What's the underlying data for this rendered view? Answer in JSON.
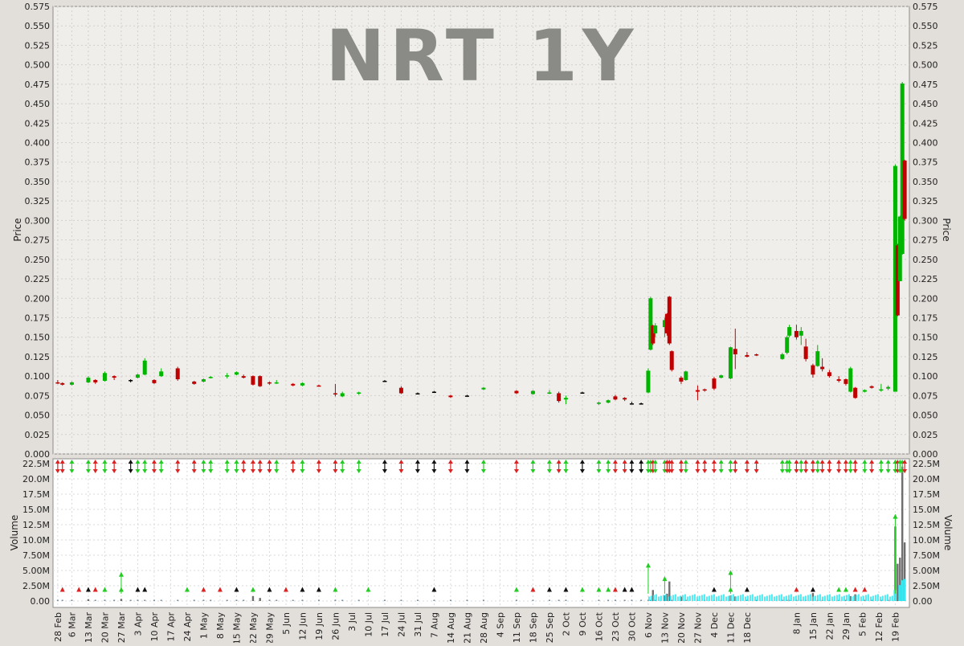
{
  "chart_data": [
    {
      "type": "candlestick",
      "title": "NRT 1Y",
      "ylabel": "Price",
      "ylim": [
        0,
        0.575
      ],
      "y_ticks": [
        "0.000",
        "0.025",
        "0.050",
        "0.075",
        "0.100",
        "0.125",
        "0.150",
        "0.175",
        "0.200",
        "0.225",
        "0.250",
        "0.275",
        "0.300",
        "0.325",
        "0.350",
        "0.375",
        "0.400",
        "0.425",
        "0.450",
        "0.475",
        "0.500",
        "0.525",
        "0.550",
        "0.575"
      ],
      "grid": true,
      "colors": {
        "up": "#00b400",
        "down": "#c00000",
        "flat": "#000000"
      },
      "x_tick_labels": [
        "28 Feb",
        "6 Mar",
        "13 Mar",
        "20 Mar",
        "27 Mar",
        "3 Apr",
        "10 Apr",
        "17 Apr",
        "24 Apr",
        "1 May",
        "8 May",
        "15 May",
        "22 May",
        "29 May",
        "5 Jun",
        "12 Jun",
        "19 Jun",
        "26 Jun",
        "3 Jul",
        "10 Jul",
        "17 Jul",
        "24 Jul",
        "31 Jul",
        "7 Aug",
        "14 Aug",
        "21 Aug",
        "28 Aug",
        "4 Sep",
        "11 Sep",
        "18 Sep",
        "25 Sep",
        "2 Oct",
        "9 Oct",
        "16 Oct",
        "23 Oct",
        "30 Oct",
        "6 Nov",
        "13 Nov",
        "20 Nov",
        "27 Nov",
        "4 Dec",
        "11 Dec",
        "18 Dec",
        "8 Jan",
        "15 Jan",
        "22 Jan",
        "29 Jan",
        "5 Feb",
        "12 Feb",
        "19 Feb"
      ],
      "candles": [
        {
          "date": "28 Feb",
          "open": 0.092,
          "high": 0.095,
          "low": 0.09,
          "close": 0.091
        },
        {
          "date": "2 Mar",
          "open": 0.091,
          "high": 0.092,
          "low": 0.088,
          "close": 0.089
        },
        {
          "date": "6 Mar",
          "open": 0.089,
          "high": 0.093,
          "low": 0.088,
          "close": 0.092
        },
        {
          "date": "13 Mar",
          "open": 0.092,
          "high": 0.1,
          "low": 0.091,
          "close": 0.098
        },
        {
          "date": "16 Mar",
          "open": 0.095,
          "high": 0.096,
          "low": 0.09,
          "close": 0.092
        },
        {
          "date": "20 Mar",
          "open": 0.094,
          "high": 0.106,
          "low": 0.093,
          "close": 0.104
        },
        {
          "date": "24 Mar",
          "open": 0.1,
          "high": 0.101,
          "low": 0.095,
          "close": 0.098
        },
        {
          "date": "31 Mar",
          "open": 0.095,
          "high": 0.096,
          "low": 0.092,
          "close": 0.095
        },
        {
          "date": "3 Apr",
          "open": 0.098,
          "high": 0.103,
          "low": 0.097,
          "close": 0.102
        },
        {
          "date": "6 Apr",
          "open": 0.102,
          "high": 0.123,
          "low": 0.101,
          "close": 0.12
        },
        {
          "date": "10 Apr",
          "open": 0.095,
          "high": 0.096,
          "low": 0.09,
          "close": 0.091
        },
        {
          "date": "13 Apr",
          "open": 0.1,
          "high": 0.11,
          "low": 0.099,
          "close": 0.106
        },
        {
          "date": "20 Apr",
          "open": 0.11,
          "high": 0.112,
          "low": 0.094,
          "close": 0.096
        },
        {
          "date": "27 Apr",
          "open": 0.093,
          "high": 0.094,
          "low": 0.089,
          "close": 0.09
        },
        {
          "date": "1 May",
          "open": 0.093,
          "high": 0.097,
          "low": 0.092,
          "close": 0.096
        },
        {
          "date": "4 May",
          "open": 0.098,
          "high": 0.1,
          "low": 0.097,
          "close": 0.099
        },
        {
          "date": "11 May",
          "open": 0.1,
          "high": 0.104,
          "low": 0.097,
          "close": 0.101
        },
        {
          "date": "15 May",
          "open": 0.102,
          "high": 0.106,
          "low": 0.101,
          "close": 0.105
        },
        {
          "date": "18 May",
          "open": 0.1,
          "high": 0.102,
          "low": 0.097,
          "close": 0.098
        },
        {
          "date": "22 May",
          "open": 0.1,
          "high": 0.101,
          "low": 0.088,
          "close": 0.089
        },
        {
          "date": "25 May",
          "open": 0.1,
          "high": 0.101,
          "low": 0.086,
          "close": 0.087
        },
        {
          "date": "29 May",
          "open": 0.092,
          "high": 0.093,
          "low": 0.089,
          "close": 0.091
        },
        {
          "date": "1 Jun",
          "open": 0.091,
          "high": 0.095,
          "low": 0.09,
          "close": 0.092
        },
        {
          "date": "8 Jun",
          "open": 0.09,
          "high": 0.091,
          "low": 0.087,
          "close": 0.088
        },
        {
          "date": "12 Jun",
          "open": 0.088,
          "high": 0.092,
          "low": 0.087,
          "close": 0.091
        },
        {
          "date": "19 Jun",
          "open": 0.088,
          "high": 0.089,
          "low": 0.087,
          "close": 0.087
        },
        {
          "date": "26 Jun",
          "open": 0.078,
          "high": 0.09,
          "low": 0.074,
          "close": 0.077
        },
        {
          "date": "29 Jun",
          "open": 0.074,
          "high": 0.08,
          "low": 0.073,
          "close": 0.078
        },
        {
          "date": "6 Jul",
          "open": 0.078,
          "high": 0.08,
          "low": 0.076,
          "close": 0.079
        },
        {
          "date": "17 Jul",
          "open": 0.094,
          "high": 0.095,
          "low": 0.093,
          "close": 0.094
        },
        {
          "date": "24 Jul",
          "open": 0.085,
          "high": 0.087,
          "low": 0.077,
          "close": 0.078
        },
        {
          "date": "31 Jul",
          "open": 0.078,
          "high": 0.079,
          "low": 0.077,
          "close": 0.078
        },
        {
          "date": "7 Aug",
          "open": 0.08,
          "high": 0.081,
          "low": 0.079,
          "close": 0.08
        },
        {
          "date": "14 Aug",
          "open": 0.075,
          "high": 0.076,
          "low": 0.072,
          "close": 0.073
        },
        {
          "date": "21 Aug",
          "open": 0.075,
          "high": 0.076,
          "low": 0.074,
          "close": 0.075
        },
        {
          "date": "28 Aug",
          "open": 0.083,
          "high": 0.086,
          "low": 0.082,
          "close": 0.085
        },
        {
          "date": "11 Sep",
          "open": 0.081,
          "high": 0.082,
          "low": 0.077,
          "close": 0.078
        },
        {
          "date": "18 Sep",
          "open": 0.077,
          "high": 0.082,
          "low": 0.076,
          "close": 0.081
        },
        {
          "date": "25 Sep",
          "open": 0.078,
          "high": 0.082,
          "low": 0.077,
          "close": 0.079
        },
        {
          "date": "29 Sep",
          "open": 0.078,
          "high": 0.08,
          "low": 0.066,
          "close": 0.068
        },
        {
          "date": "2 Oct",
          "open": 0.07,
          "high": 0.075,
          "low": 0.064,
          "close": 0.072
        },
        {
          "date": "9 Oct",
          "open": 0.079,
          "high": 0.08,
          "low": 0.078,
          "close": 0.079
        },
        {
          "date": "16 Oct",
          "open": 0.065,
          "high": 0.067,
          "low": 0.063,
          "close": 0.066
        },
        {
          "date": "20 Oct",
          "open": 0.066,
          "high": 0.07,
          "low": 0.065,
          "close": 0.069
        },
        {
          "date": "23 Oct",
          "open": 0.074,
          "high": 0.076,
          "low": 0.069,
          "close": 0.07
        },
        {
          "date": "27 Oct",
          "open": 0.072,
          "high": 0.073,
          "low": 0.068,
          "close": 0.07
        },
        {
          "date": "30 Oct",
          "open": 0.065,
          "high": 0.067,
          "low": 0.064,
          "close": 0.065
        },
        {
          "date": "3 Nov",
          "open": 0.065,
          "high": 0.066,
          "low": 0.064,
          "close": 0.065
        },
        {
          "date": "6 Nov",
          "open": 0.079,
          "high": 0.11,
          "low": 0.078,
          "close": 0.107
        },
        {
          "date": "7 Nov",
          "open": 0.134,
          "high": 0.202,
          "low": 0.133,
          "close": 0.2
        },
        {
          "date": "8 Nov",
          "open": 0.165,
          "high": 0.166,
          "low": 0.14,
          "close": 0.142
        },
        {
          "date": "9 Nov",
          "open": 0.155,
          "high": 0.168,
          "low": 0.15,
          "close": 0.165
        },
        {
          "date": "13 Nov",
          "open": 0.163,
          "high": 0.175,
          "low": 0.15,
          "close": 0.172
        },
        {
          "date": "14 Nov",
          "open": 0.18,
          "high": 0.181,
          "low": 0.152,
          "close": 0.155
        },
        {
          "date": "15 Nov",
          "open": 0.202,
          "high": 0.203,
          "low": 0.14,
          "close": 0.142
        },
        {
          "date": "16 Nov",
          "open": 0.132,
          "high": 0.133,
          "low": 0.106,
          "close": 0.108
        },
        {
          "date": "20 Nov",
          "open": 0.098,
          "high": 0.1,
          "low": 0.09,
          "close": 0.093
        },
        {
          "date": "22 Nov",
          "open": 0.095,
          "high": 0.107,
          "low": 0.094,
          "close": 0.106
        },
        {
          "date": "27 Nov",
          "open": 0.082,
          "high": 0.088,
          "low": 0.069,
          "close": 0.08
        },
        {
          "date": "30 Nov",
          "open": 0.083,
          "high": 0.084,
          "low": 0.08,
          "close": 0.082
        },
        {
          "date": "4 Dec",
          "open": 0.097,
          "high": 0.099,
          "low": 0.082,
          "close": 0.084
        },
        {
          "date": "7 Dec",
          "open": 0.098,
          "high": 0.102,
          "low": 0.097,
          "close": 0.101
        },
        {
          "date": "11 Dec",
          "open": 0.097,
          "high": 0.138,
          "low": 0.096,
          "close": 0.137
        },
        {
          "date": "13 Dec",
          "open": 0.135,
          "high": 0.161,
          "low": 0.109,
          "close": 0.128
        },
        {
          "date": "18 Dec",
          "open": 0.127,
          "high": 0.131,
          "low": 0.124,
          "close": 0.125
        },
        {
          "date": "22 Dec",
          "open": 0.128,
          "high": 0.129,
          "low": 0.126,
          "close": 0.127
        },
        {
          "date": "2 Jan",
          "open": 0.122,
          "high": 0.13,
          "low": 0.121,
          "close": 0.128
        },
        {
          "date": "4 Jan",
          "open": 0.13,
          "high": 0.152,
          "low": 0.128,
          "close": 0.15
        },
        {
          "date": "5 Jan",
          "open": 0.152,
          "high": 0.166,
          "low": 0.15,
          "close": 0.163
        },
        {
          "date": "8 Jan",
          "open": 0.158,
          "high": 0.166,
          "low": 0.147,
          "close": 0.15
        },
        {
          "date": "10 Jan",
          "open": 0.152,
          "high": 0.163,
          "low": 0.14,
          "close": 0.158
        },
        {
          "date": "12 Jan",
          "open": 0.138,
          "high": 0.148,
          "low": 0.119,
          "close": 0.122
        },
        {
          "date": "15 Jan",
          "open": 0.114,
          "high": 0.116,
          "low": 0.098,
          "close": 0.102
        },
        {
          "date": "17 Jan",
          "open": 0.113,
          "high": 0.14,
          "low": 0.112,
          "close": 0.132
        },
        {
          "date": "19 Jan",
          "open": 0.112,
          "high": 0.123,
          "low": 0.106,
          "close": 0.109
        },
        {
          "date": "22 Jan",
          "open": 0.105,
          "high": 0.108,
          "low": 0.098,
          "close": 0.1
        },
        {
          "date": "26 Jan",
          "open": 0.096,
          "high": 0.1,
          "low": 0.092,
          "close": 0.094
        },
        {
          "date": "29 Jan",
          "open": 0.096,
          "high": 0.097,
          "low": 0.088,
          "close": 0.09
        },
        {
          "date": "31 Jan",
          "open": 0.08,
          "high": 0.112,
          "low": 0.079,
          "close": 0.11
        },
        {
          "date": "2 Feb",
          "open": 0.085,
          "high": 0.086,
          "low": 0.071,
          "close": 0.072
        },
        {
          "date": "6 Feb",
          "open": 0.08,
          "high": 0.083,
          "low": 0.079,
          "close": 0.082
        },
        {
          "date": "9 Feb",
          "open": 0.087,
          "high": 0.088,
          "low": 0.084,
          "close": 0.085
        },
        {
          "date": "13 Feb",
          "open": 0.082,
          "high": 0.09,
          "low": 0.08,
          "close": 0.083
        },
        {
          "date": "16 Feb",
          "open": 0.084,
          "high": 0.088,
          "low": 0.082,
          "close": 0.086
        },
        {
          "date": "19 Feb",
          "open": 0.08,
          "high": 0.372,
          "low": 0.08,
          "close": 0.37
        },
        {
          "date": "20 Feb",
          "open": 0.268,
          "high": 0.27,
          "low": 0.177,
          "close": 0.178
        },
        {
          "date": "21 Feb",
          "open": 0.222,
          "high": 0.306,
          "low": 0.222,
          "close": 0.305
        },
        {
          "date": "22 Feb",
          "open": 0.257,
          "high": 0.478,
          "low": 0.256,
          "close": 0.476
        },
        {
          "date": "23 Feb",
          "open": 0.377,
          "high": 0.378,
          "low": 0.3,
          "close": 0.302
        }
      ]
    },
    {
      "type": "bar",
      "ylabel": "Volume",
      "ylim": [
        0,
        22500000
      ],
      "y_ticks": [
        "0.00",
        "2.50M",
        "5.00M",
        "7.50M",
        "10.0M",
        "12.5M",
        "15.0M",
        "17.5M",
        "20.0M",
        "22.5M"
      ],
      "grid": true,
      "colors": {
        "volume": "#6e6e6e",
        "average": "#33e8f0",
        "up_arrow": "#22cc22",
        "down_arrow": "#dd2222",
        "flat_arrow": "#111111"
      },
      "volumes": [
        {
          "date": "13 Mar",
          "value": 300000
        },
        {
          "date": "27 Mar",
          "value": 350000
        },
        {
          "date": "22 May",
          "value": 800000
        },
        {
          "date": "25 May",
          "value": 500000
        },
        {
          "date": "8 Nov",
          "value": 1800000
        },
        {
          "date": "13 Nov",
          "value": 900000
        },
        {
          "date": "14 Nov",
          "value": 1200000
        },
        {
          "date": "15 Nov",
          "value": 3200000
        },
        {
          "date": "20 Nov",
          "value": 700000
        },
        {
          "date": "11 Dec",
          "value": 900000
        },
        {
          "date": "13 Dec",
          "value": 750000
        },
        {
          "date": "15 Jan",
          "value": 1300000
        },
        {
          "date": "31 Jan",
          "value": 800000
        },
        {
          "date": "2 Feb",
          "value": 1100000
        },
        {
          "date": "19 Feb",
          "value": 12200000
        },
        {
          "date": "20 Feb",
          "value": 6100000
        },
        {
          "date": "21 Feb",
          "value": 7100000
        },
        {
          "date": "22 Feb",
          "value": 22000000
        },
        {
          "date": "23 Feb",
          "value": 9600000
        }
      ]
    }
  ]
}
